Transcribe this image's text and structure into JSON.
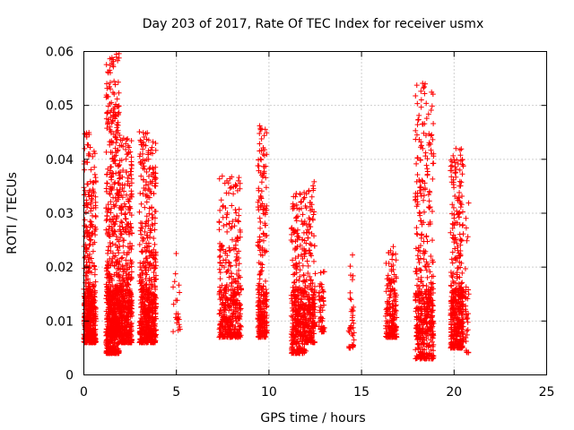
{
  "chart_data": {
    "type": "scatter",
    "title": "Day 203 of 2017, Rate Of TEC Index for receiver usmx",
    "xlabel": "GPS time / hours",
    "ylabel": "ROTI / TECUs",
    "xlim": [
      0,
      25
    ],
    "ylim": [
      0,
      0.06
    ],
    "x_ticks": [
      0,
      5,
      10,
      15,
      20,
      25
    ],
    "x_tick_labels": [
      "0",
      "5",
      "10",
      "15",
      "20",
      "25"
    ],
    "y_ticks": [
      0,
      0.01,
      0.02,
      0.03,
      0.04,
      0.05,
      0.06
    ],
    "y_tick_labels": [
      "0",
      "0.01",
      "0.02",
      "0.03",
      "0.04",
      "0.05",
      "0.06"
    ],
    "grid": true,
    "grid_style": "dotted",
    "marker": "+",
    "colors": {
      "points": "#ff0000",
      "axes": "#000000",
      "grid": "#a0a0a0"
    },
    "clusters": [
      {
        "x": [
          0.0,
          0.35
        ],
        "y": [
          0.006,
          0.045
        ],
        "n": 220,
        "peak": 0.045
      },
      {
        "x": [
          0.35,
          0.65
        ],
        "y": [
          0.006,
          0.042
        ],
        "n": 160
      },
      {
        "x": [
          1.2,
          1.9
        ],
        "y": [
          0.004,
          0.06
        ],
        "n": 520,
        "peak": 0.06
      },
      {
        "x": [
          1.9,
          2.6
        ],
        "y": [
          0.006,
          0.045
        ],
        "n": 360
      },
      {
        "x": [
          3.0,
          3.9
        ],
        "y": [
          0.006,
          0.045
        ],
        "n": 420
      },
      {
        "x": [
          4.8,
          5.2
        ],
        "y": [
          0.008,
          0.024
        ],
        "n": 18
      },
      {
        "x": [
          7.3,
          8.5
        ],
        "y": [
          0.007,
          0.037
        ],
        "n": 300
      },
      {
        "x": [
          9.4,
          9.9
        ],
        "y": [
          0.007,
          0.046
        ],
        "n": 190
      },
      {
        "x": [
          11.2,
          12.0
        ],
        "y": [
          0.004,
          0.034
        ],
        "n": 280
      },
      {
        "x": [
          12.0,
          12.5
        ],
        "y": [
          0.006,
          0.036
        ],
        "n": 150
      },
      {
        "x": [
          12.7,
          13.0
        ],
        "y": [
          0.008,
          0.021
        ],
        "n": 40
      },
      {
        "x": [
          14.3,
          14.6
        ],
        "y": [
          0.005,
          0.023
        ],
        "n": 30
      },
      {
        "x": [
          16.3,
          16.9
        ],
        "y": [
          0.007,
          0.024
        ],
        "n": 130
      },
      {
        "x": [
          17.9,
          18.9
        ],
        "y": [
          0.003,
          0.054
        ],
        "n": 360,
        "peak": 0.054
      },
      {
        "x": [
          19.8,
          20.5
        ],
        "y": [
          0.005,
          0.042
        ],
        "n": 320
      },
      {
        "x": [
          20.6,
          20.8
        ],
        "y": [
          0.004,
          0.038
        ],
        "n": 25
      }
    ],
    "notable_points": [
      {
        "x": 1.9,
        "y": 0.0596
      },
      {
        "x": 1.9,
        "y": 0.0588
      },
      {
        "x": 1.8,
        "y": 0.0512
      },
      {
        "x": 1.85,
        "y": 0.0498
      },
      {
        "x": 3.0,
        "y": 0.0451
      },
      {
        "x": 0.05,
        "y": 0.0447
      },
      {
        "x": 18.3,
        "y": 0.0541
      },
      {
        "x": 18.05,
        "y": 0.0473
      },
      {
        "x": 18.4,
        "y": 0.0466
      },
      {
        "x": 20.1,
        "y": 0.042
      },
      {
        "x": 9.5,
        "y": 0.0462
      },
      {
        "x": 9.6,
        "y": 0.0438
      }
    ]
  }
}
